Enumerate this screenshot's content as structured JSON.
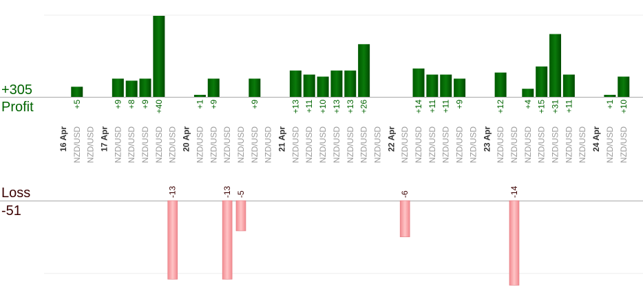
{
  "summary": {
    "profit_total": "+305",
    "profit_label": "Profit",
    "loss_label": "Loss",
    "loss_total": "-51"
  },
  "colors": {
    "profit": "#006400",
    "loss": "#f5a0a4",
    "date": "#333333",
    "pair": "#999999",
    "loss_text": "#3a0000"
  },
  "chart_data": {
    "type": "bar",
    "title": "",
    "profit_axis_max": 60,
    "loss_axis_max": 20,
    "columns": [
      {
        "kind": "date",
        "label": "16 Apr"
      },
      {
        "kind": "trade",
        "pair": "NZD/USD",
        "profit": 5
      },
      {
        "kind": "trade",
        "pair": "NZD/USD"
      },
      {
        "kind": "date",
        "label": "17 Apr"
      },
      {
        "kind": "trade",
        "pair": "NZD/USD",
        "profit": 9
      },
      {
        "kind": "trade",
        "pair": "NZD/USD",
        "profit": 8
      },
      {
        "kind": "trade",
        "pair": "NZD/USD",
        "profit": 9
      },
      {
        "kind": "trade",
        "pair": "NZD/USD",
        "profit": 40
      },
      {
        "kind": "trade",
        "pair": "NZD/USD",
        "loss": -13
      },
      {
        "kind": "date",
        "label": "20 Apr"
      },
      {
        "kind": "trade",
        "pair": "NZD/USD",
        "profit": 1
      },
      {
        "kind": "trade",
        "pair": "NZD/USD",
        "profit": 9
      },
      {
        "kind": "trade",
        "pair": "NZD/USD",
        "loss": -13
      },
      {
        "kind": "trade",
        "pair": "NZD/USD",
        "loss": -5
      },
      {
        "kind": "trade",
        "pair": "NZD/USD",
        "profit": 9
      },
      {
        "kind": "trade",
        "pair": "NZD/USD"
      },
      {
        "kind": "date",
        "label": "21 Apr"
      },
      {
        "kind": "trade",
        "pair": "NZD/USD",
        "profit": 13
      },
      {
        "kind": "trade",
        "pair": "NZD/USD",
        "profit": 11
      },
      {
        "kind": "trade",
        "pair": "NZD/USD",
        "profit": 10
      },
      {
        "kind": "trade",
        "pair": "NZD/USD",
        "profit": 13
      },
      {
        "kind": "trade",
        "pair": "NZD/USD",
        "profit": 13
      },
      {
        "kind": "trade",
        "pair": "NZD/USD",
        "profit": 26
      },
      {
        "kind": "trade",
        "pair": "NZD/USD"
      },
      {
        "kind": "date",
        "label": "22 Apr"
      },
      {
        "kind": "trade",
        "pair": "NZD/USD",
        "loss": -6
      },
      {
        "kind": "trade",
        "pair": "NZD/USD",
        "profit": 14
      },
      {
        "kind": "trade",
        "pair": "NZD/USD",
        "profit": 11
      },
      {
        "kind": "trade",
        "pair": "NZD/USD",
        "profit": 11
      },
      {
        "kind": "trade",
        "pair": "NZD/USD",
        "profit": 9
      },
      {
        "kind": "trade",
        "pair": "NZD/USD"
      },
      {
        "kind": "date",
        "label": "23 Apr"
      },
      {
        "kind": "trade",
        "pair": "NZD/USD",
        "profit": 12
      },
      {
        "kind": "trade",
        "pair": "NZD/USD",
        "loss": -14
      },
      {
        "kind": "trade",
        "pair": "NZD/USD",
        "profit": 4
      },
      {
        "kind": "trade",
        "pair": "NZD/USD",
        "profit": 15
      },
      {
        "kind": "trade",
        "pair": "NZD/USD",
        "profit": 31
      },
      {
        "kind": "trade",
        "pair": "NZD/USD",
        "profit": 11
      },
      {
        "kind": "trade",
        "pair": "NZD/USD"
      },
      {
        "kind": "date",
        "label": "24 Apr"
      },
      {
        "kind": "trade",
        "pair": "NZD/USD",
        "profit": 1
      },
      {
        "kind": "trade",
        "pair": "NZD/USD",
        "profit": 10
      }
    ]
  }
}
